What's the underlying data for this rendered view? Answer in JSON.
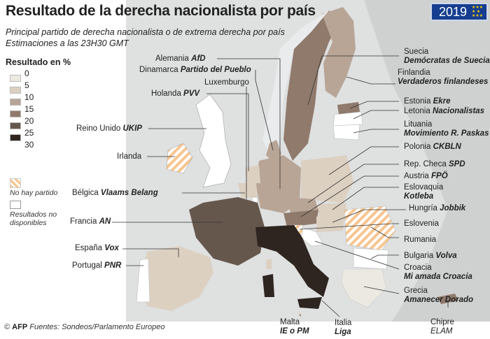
{
  "title": "Resultado de la derecha nacionalista por país",
  "subtitle": [
    "Principal partido de derecha nacionalista o de extrema derecha por país",
    "Estimaciones a las 23H30 GMT"
  ],
  "year_badge": "2019",
  "legend": {
    "title": "Resultado en %",
    "ticks": [
      "0",
      "5",
      "10",
      "15",
      "20",
      "25",
      "30"
    ],
    "colors": [
      "#ece9e3",
      "#dcd0c1",
      "#b8a596",
      "#8f7a6c",
      "#66574d",
      "#2e2520"
    ],
    "no_party": "No hay partido",
    "no_party_pattern": [
      "#f7c58f",
      "#ffffff"
    ],
    "no_data": [
      "Resultados no",
      "disponibles"
    ]
  },
  "countries": [
    {
      "name": "Alemania",
      "party": "AfD",
      "side": "left"
    },
    {
      "name": "Dinamarca",
      "party": "Partido del Pueblo",
      "side": "left"
    },
    {
      "name": "Holanda",
      "party": "PVV",
      "side": "left"
    },
    {
      "name": "Luxemburgo",
      "party": "",
      "side": "left"
    },
    {
      "name": "Reino Unido",
      "party": "UKIP",
      "side": "left"
    },
    {
      "name": "Irlanda",
      "party": "",
      "side": "left"
    },
    {
      "name": "Bélgica",
      "party": "Vlaams Belang",
      "side": "left"
    },
    {
      "name": "Francia",
      "party": "AN",
      "side": "left"
    },
    {
      "name": "España",
      "party": "Vox",
      "side": "left"
    },
    {
      "name": "Portugal",
      "party": "PNR",
      "side": "left"
    },
    {
      "name": "Suecia",
      "party": "Demócratas de Suecia",
      "side": "right"
    },
    {
      "name": "Finlandia",
      "party": "Verdaderos finlandeses",
      "side": "right"
    },
    {
      "name": "Estonia",
      "party": "Ekre",
      "side": "right"
    },
    {
      "name": "Letonia",
      "party": "Nacionalistas",
      "side": "right"
    },
    {
      "name": "Lituania",
      "party": "Movimiento R. Paskas",
      "side": "right"
    },
    {
      "name": "Polonia",
      "party": "CKBLN",
      "side": "right"
    },
    {
      "name": "Rep. Checa",
      "party": "SPD",
      "side": "right"
    },
    {
      "name": "Austria",
      "party": "FPÖ",
      "side": "right"
    },
    {
      "name": "Eslovaquia",
      "party": "Kotleba",
      "side": "right"
    },
    {
      "name": "Hungría",
      "party": "Jobbik",
      "side": "right"
    },
    {
      "name": "Eslovenia",
      "party": "",
      "side": "right"
    },
    {
      "name": "Rumania",
      "party": "",
      "side": "right"
    },
    {
      "name": "Bulgaria",
      "party": "Volva",
      "side": "right"
    },
    {
      "name": "Croacia",
      "party": "Mi amada Croacia",
      "side": "right"
    },
    {
      "name": "Grecia",
      "party": "Amanecer Dorado",
      "side": "right"
    },
    {
      "name": "Chipre",
      "party": "ELAM",
      "side": "right"
    },
    {
      "name": "Malta",
      "party": "IE o PM",
      "side": "bottom"
    },
    {
      "name": "Italia",
      "party": "Liga",
      "side": "bottom"
    }
  ],
  "footer": {
    "agency": "AFP",
    "copyright": "©",
    "source": "Fuentes: Sondeos/Parlamento Europeo"
  }
}
